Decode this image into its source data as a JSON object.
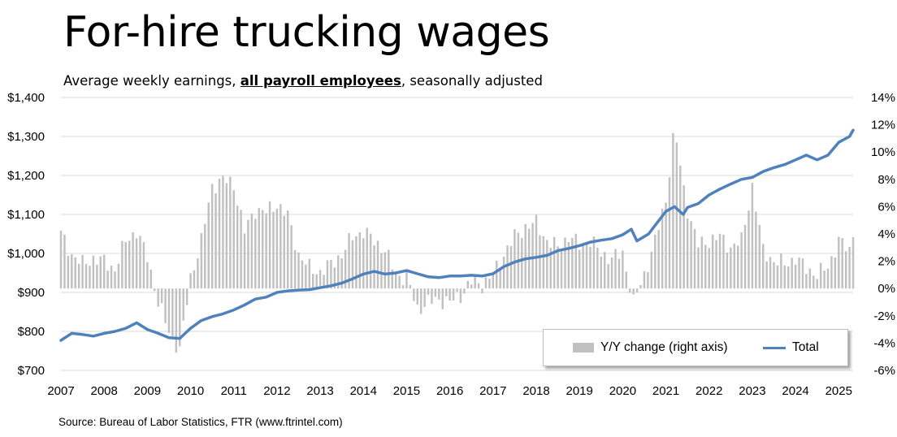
{
  "title": "For-hire trucking wages",
  "subtitle": {
    "before": "Average weekly earnings, ",
    "emphasis": "all payroll employees",
    "after": ", seasonally adjusted"
  },
  "source": "Source: Bureau of Labor Statistics, FTR (www.ftrintel.com)",
  "legend": {
    "bar_label": "Y/Y change (right axis)",
    "line_label": "Total"
  },
  "colors": {
    "line": "#4f81bd",
    "bar": "#c0c0c0",
    "grid": "#d9d9d9"
  },
  "chart_data": {
    "type": "bar+line",
    "title": "For-hire trucking wages",
    "xlabel": "",
    "ylabel": "",
    "x_ticks": [
      "2007",
      "2008",
      "2009",
      "2010",
      "2011",
      "2012",
      "2013",
      "2014",
      "2015",
      "2016",
      "2017",
      "2018",
      "2019",
      "2020",
      "2021",
      "2022",
      "2023",
      "2024",
      "2025"
    ],
    "y_left": {
      "lim": [
        700,
        1400
      ],
      "ticks": [
        "$700",
        "$800",
        "$900",
        "$1,000",
        "$1,100",
        "$1,200",
        "$1,300",
        "$1,400"
      ]
    },
    "y_right": {
      "lim": [
        -6,
        14
      ],
      "ticks": [
        "-6%",
        "-4%",
        "-2%",
        "0%",
        "2%",
        "4%",
        "6%",
        "8%",
        "10%",
        "12%",
        "14%"
      ]
    },
    "grid": true,
    "legend_position": "bottom-right",
    "x_range": [
      2007.0,
      2025.333
    ],
    "series": [
      {
        "name": "Total",
        "type": "line",
        "axis": "left",
        "points": [
          [
            2007.0,
            777
          ],
          [
            2007.25,
            795
          ],
          [
            2007.5,
            792
          ],
          [
            2007.75,
            788
          ],
          [
            2008.0,
            795
          ],
          [
            2008.25,
            800
          ],
          [
            2008.5,
            808
          ],
          [
            2008.75,
            822
          ],
          [
            2009.0,
            805
          ],
          [
            2009.25,
            795
          ],
          [
            2009.5,
            784
          ],
          [
            2009.75,
            782
          ],
          [
            2010.0,
            808
          ],
          [
            2010.25,
            828
          ],
          [
            2010.5,
            838
          ],
          [
            2010.75,
            845
          ],
          [
            2011.0,
            855
          ],
          [
            2011.25,
            868
          ],
          [
            2011.5,
            883
          ],
          [
            2011.75,
            888
          ],
          [
            2012.0,
            900
          ],
          [
            2012.25,
            904
          ],
          [
            2012.5,
            906
          ],
          [
            2012.75,
            907
          ],
          [
            2013.0,
            912
          ],
          [
            2013.25,
            917
          ],
          [
            2013.5,
            924
          ],
          [
            2013.75,
            935
          ],
          [
            2014.0,
            947
          ],
          [
            2014.25,
            954
          ],
          [
            2014.5,
            947
          ],
          [
            2014.75,
            950
          ],
          [
            2015.0,
            956
          ],
          [
            2015.25,
            948
          ],
          [
            2015.5,
            940
          ],
          [
            2015.75,
            938
          ],
          [
            2016.0,
            942
          ],
          [
            2016.25,
            942
          ],
          [
            2016.5,
            944
          ],
          [
            2016.75,
            942
          ],
          [
            2017.0,
            948
          ],
          [
            2017.25,
            966
          ],
          [
            2017.5,
            978
          ],
          [
            2017.75,
            986
          ],
          [
            2018.0,
            990
          ],
          [
            2018.25,
            995
          ],
          [
            2018.5,
            1007
          ],
          [
            2018.75,
            1013
          ],
          [
            2019.0,
            1020
          ],
          [
            2019.25,
            1029
          ],
          [
            2019.5,
            1034
          ],
          [
            2019.75,
            1038
          ],
          [
            2020.0,
            1048
          ],
          [
            2020.2,
            1062
          ],
          [
            2020.33,
            1032
          ],
          [
            2020.6,
            1050
          ],
          [
            2020.75,
            1072
          ],
          [
            2021.0,
            1108
          ],
          [
            2021.2,
            1120
          ],
          [
            2021.4,
            1100
          ],
          [
            2021.5,
            1118
          ],
          [
            2021.75,
            1128
          ],
          [
            2022.0,
            1150
          ],
          [
            2022.25,
            1165
          ],
          [
            2022.5,
            1178
          ],
          [
            2022.75,
            1190
          ],
          [
            2023.0,
            1195
          ],
          [
            2023.25,
            1210
          ],
          [
            2023.5,
            1220
          ],
          [
            2023.75,
            1228
          ],
          [
            2024.0,
            1240
          ],
          [
            2024.25,
            1252
          ],
          [
            2024.5,
            1240
          ],
          [
            2024.75,
            1252
          ],
          [
            2025.0,
            1285
          ],
          [
            2025.25,
            1300
          ],
          [
            2025.333,
            1316
          ]
        ]
      },
      {
        "name": "Y/Y change (right axis)",
        "type": "bar",
        "axis": "right",
        "points": [
          [
            2007.0,
            4.0
          ],
          [
            2007.25,
            2.5
          ],
          [
            2007.5,
            1.8
          ],
          [
            2007.75,
            2.2
          ],
          [
            2008.0,
            2.0
          ],
          [
            2008.25,
            1.4
          ],
          [
            2008.5,
            3.5
          ],
          [
            2008.75,
            4.2
          ],
          [
            2009.0,
            2.3
          ],
          [
            2009.25,
            -1.0
          ],
          [
            2009.5,
            -3.2
          ],
          [
            2009.75,
            -4.5
          ],
          [
            2010.0,
            0.8
          ],
          [
            2010.25,
            3.5
          ],
          [
            2010.5,
            7.5
          ],
          [
            2010.75,
            8.0
          ],
          [
            2011.0,
            7.6
          ],
          [
            2011.25,
            4.2
          ],
          [
            2011.5,
            5.8
          ],
          [
            2011.75,
            5.6
          ],
          [
            2012.0,
            6.2
          ],
          [
            2012.25,
            5.3
          ],
          [
            2012.5,
            2.5
          ],
          [
            2012.75,
            1.5
          ],
          [
            2013.0,
            1.2
          ],
          [
            2013.25,
            1.8
          ],
          [
            2013.5,
            2.5
          ],
          [
            2013.75,
            3.8
          ],
          [
            2014.0,
            4.2
          ],
          [
            2014.25,
            3.5
          ],
          [
            2014.5,
            2.8
          ],
          [
            2014.75,
            1.0
          ],
          [
            2015.0,
            0.8
          ],
          [
            2015.25,
            -1.5
          ],
          [
            2015.5,
            -1.0
          ],
          [
            2015.75,
            -0.8
          ],
          [
            2016.0,
            -1.0
          ],
          [
            2016.25,
            -0.5
          ],
          [
            2016.5,
            0.5
          ],
          [
            2016.75,
            0.3
          ],
          [
            2017.0,
            1.0
          ],
          [
            2017.25,
            2.5
          ],
          [
            2017.5,
            3.8
          ],
          [
            2017.75,
            4.5
          ],
          [
            2018.0,
            4.8
          ],
          [
            2018.25,
            3.5
          ],
          [
            2018.5,
            3.0
          ],
          [
            2018.75,
            3.8
          ],
          [
            2019.0,
            3.2
          ],
          [
            2019.25,
            3.5
          ],
          [
            2019.5,
            2.6
          ],
          [
            2019.75,
            2.2
          ],
          [
            2020.0,
            2.6
          ],
          [
            2020.25,
            -1.0
          ],
          [
            2020.5,
            1.0
          ],
          [
            2020.75,
            3.5
          ],
          [
            2021.0,
            6.5
          ],
          [
            2021.2,
            11.8
          ],
          [
            2021.4,
            7.5
          ],
          [
            2021.5,
            5.8
          ],
          [
            2021.75,
            3.2
          ],
          [
            2022.0,
            3.5
          ],
          [
            2022.25,
            3.8
          ],
          [
            2022.5,
            3.0
          ],
          [
            2022.75,
            3.5
          ],
          [
            2023.0,
            7.5
          ],
          [
            2023.25,
            2.8
          ],
          [
            2023.5,
            2.0
          ],
          [
            2023.75,
            1.8
          ],
          [
            2024.0,
            2.2
          ],
          [
            2024.25,
            1.5
          ],
          [
            2024.5,
            1.0
          ],
          [
            2024.75,
            1.6
          ],
          [
            2025.0,
            3.5
          ],
          [
            2025.25,
            2.8
          ],
          [
            2025.333,
            4.1
          ]
        ]
      }
    ]
  }
}
